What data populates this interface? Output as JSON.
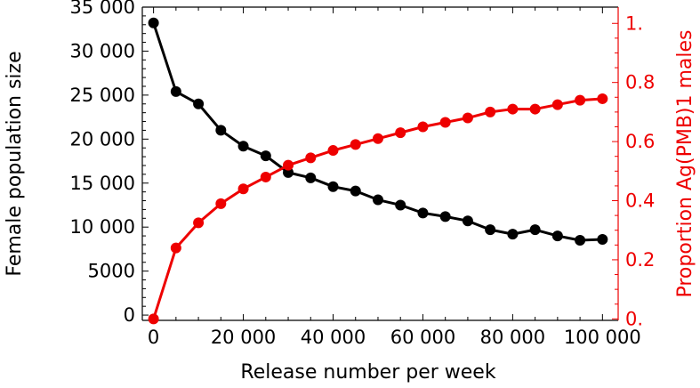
{
  "chart_data": {
    "type": "line",
    "title": "",
    "xlabel": "Release number per week",
    "ylabel_left": "Female population size",
    "ylabel_right": "Proportion Ag(PMB)1 males",
    "x": [
      0,
      5000,
      10000,
      15000,
      20000,
      25000,
      30000,
      35000,
      40000,
      45000,
      50000,
      55000,
      60000,
      65000,
      70000,
      75000,
      80000,
      85000,
      90000,
      95000,
      100000
    ],
    "xlim": [
      -2500,
      103500
    ],
    "ylim_left": [
      -600,
      35000
    ],
    "ylim_right": [
      -0.005,
      1.055
    ],
    "x_ticks": [
      0,
      20000,
      40000,
      60000,
      80000,
      100000
    ],
    "x_tick_labels": [
      "0",
      "20 000",
      "40 000",
      "60 000",
      "80 000",
      "100 000"
    ],
    "y_left_ticks": [
      0,
      5000,
      10000,
      15000,
      20000,
      25000,
      30000,
      35000
    ],
    "y_left_tick_labels": [
      "0",
      "5000",
      "10 000",
      "15 000",
      "20 000",
      "25 000",
      "30 000",
      "35 000"
    ],
    "y_right_ticks": [
      0,
      0.2,
      0.4,
      0.6,
      0.8,
      1.0
    ],
    "y_right_tick_labels": [
      "0.",
      "0.2",
      "0.4",
      "0.6",
      "0.8",
      "1."
    ],
    "grid": false,
    "legend": "none",
    "series": [
      {
        "axis": "left",
        "color": "#000000",
        "values": [
          33200,
          25400,
          24000,
          21000,
          19200,
          18100,
          16200,
          15600,
          14600,
          14100,
          13100,
          12500,
          11600,
          11200,
          10700,
          9700,
          9200,
          9700,
          9000,
          8500,
          8600
        ]
      },
      {
        "axis": "right",
        "color": "#ee0000",
        "values": [
          0.0,
          0.24,
          0.325,
          0.39,
          0.44,
          0.48,
          0.52,
          0.545,
          0.57,
          0.59,
          0.61,
          0.63,
          0.65,
          0.665,
          0.68,
          0.7,
          0.71,
          0.71,
          0.725,
          0.74,
          0.745
        ]
      }
    ]
  }
}
